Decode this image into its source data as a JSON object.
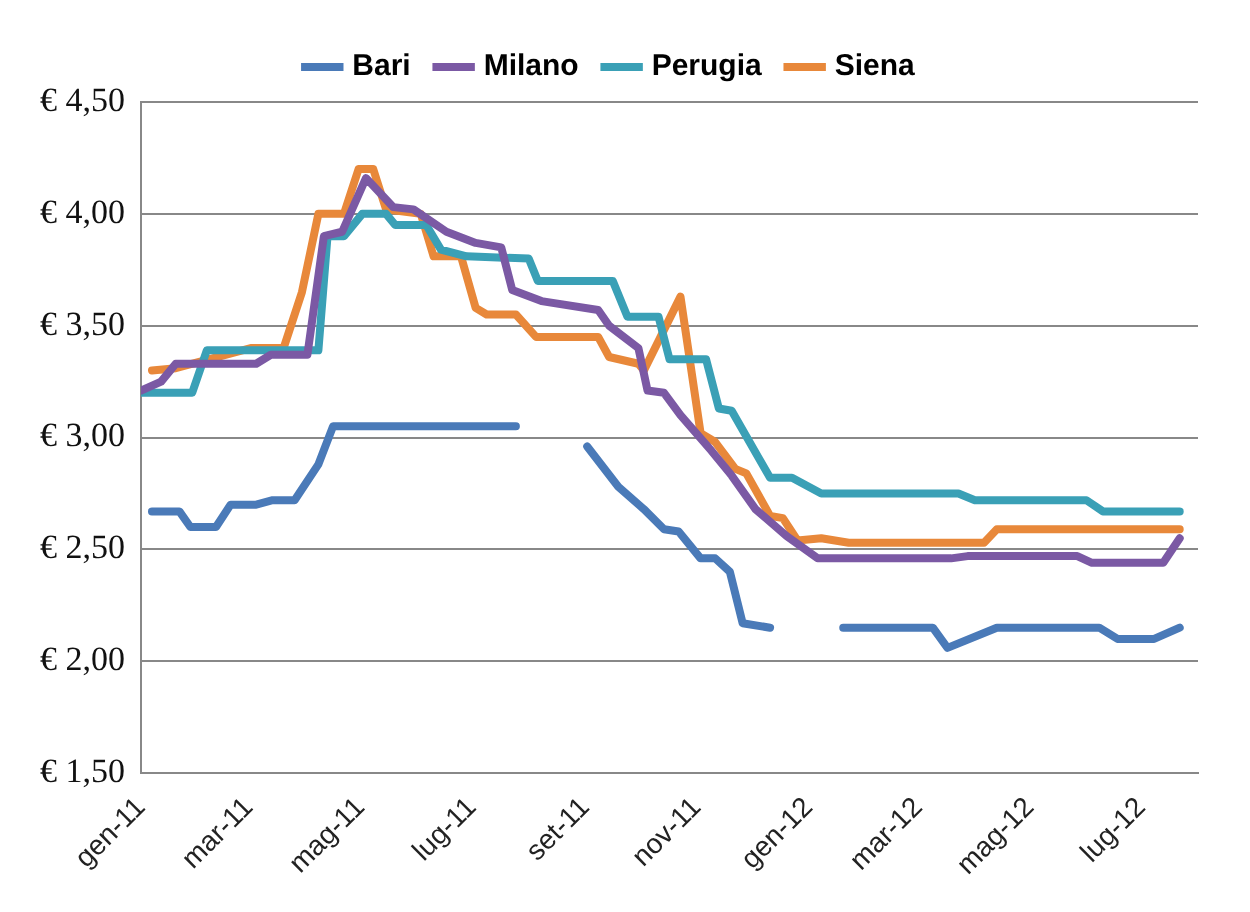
{
  "chart_data": {
    "type": "line",
    "xlim": [
      "2011-01-01",
      "2012-08-01"
    ],
    "xticks": [
      {
        "value": "2011-01-01",
        "label": "gen-11"
      },
      {
        "value": "2011-03-01",
        "label": "mar-11"
      },
      {
        "value": "2011-05-01",
        "label": "mag-11"
      },
      {
        "value": "2011-07-01",
        "label": "lug-11"
      },
      {
        "value": "2011-09-01",
        "label": "set-11"
      },
      {
        "value": "2011-11-01",
        "label": "nov-11"
      },
      {
        "value": "2012-01-01",
        "label": "gen-12"
      },
      {
        "value": "2012-03-01",
        "label": "mar-12"
      },
      {
        "value": "2012-05-01",
        "label": "mag-12"
      },
      {
        "value": "2012-07-01",
        "label": "lug-12"
      }
    ],
    "ylim": [
      1.5,
      4.5
    ],
    "yticks": [
      {
        "value": 1.5,
        "label": "€ 1,50"
      },
      {
        "value": 2,
        "label": "€ 2,00"
      },
      {
        "value": 2.5,
        "label": "€ 2,50"
      },
      {
        "value": 3,
        "label": "€ 3,00"
      },
      {
        "value": 3.5,
        "label": "€ 3,50"
      },
      {
        "value": 4,
        "label": "€ 4,00"
      },
      {
        "value": 4.5,
        "label": "€ 4,50"
      }
    ],
    "grid": "y",
    "legend": "top",
    "marker": "none",
    "line_style": "solid",
    "series": [
      {
        "name": "Bari",
        "color": "#4a7ab8",
        "x": [
          "2011-01-07",
          "2011-01-22",
          "2011-01-28",
          "2011-02-11",
          "2011-02-19",
          "2011-03-05",
          "2011-03-14",
          "2011-03-26",
          "2011-04-08",
          "2011-04-16",
          "2011-07-25",
          "2011-08-15",
          "2011-09-02",
          "2011-09-19",
          "2011-10-03",
          "2011-10-14",
          "2011-10-22",
          "2011-11-03",
          "2011-11-11",
          "2011-11-19",
          "2011-11-26",
          "2011-12-11",
          "2012-01-01",
          "2012-01-20",
          "2012-03-09",
          "2012-03-17",
          "2012-04-13",
          "2012-06-08",
          "2012-06-18",
          "2012-07-08",
          "2012-07-22"
        ],
        "values": [
          2.67,
          2.67,
          2.6,
          2.6,
          2.7,
          2.7,
          2.72,
          2.72,
          2.88,
          3.05,
          3.05,
          null,
          2.96,
          2.78,
          2.68,
          2.59,
          2.58,
          2.46,
          2.46,
          2.4,
          2.17,
          2.15,
          null,
          2.15,
          2.15,
          2.06,
          2.15,
          2.15,
          2.1,
          2.1,
          2.15
        ]
      },
      {
        "name": "Milano",
        "color": "#7b59a4",
        "x": [
          "2011-01-01",
          "2011-01-12",
          "2011-01-20",
          "2011-03-05",
          "2011-03-13",
          "2011-04-02",
          "2011-04-11",
          "2011-04-21",
          "2011-05-04",
          "2011-05-19",
          "2011-05-30",
          "2011-06-17",
          "2011-07-03",
          "2011-07-17",
          "2011-07-23",
          "2011-08-08",
          "2011-09-08",
          "2011-09-14",
          "2011-09-30",
          "2011-10-05",
          "2011-10-14",
          "2011-10-23",
          "2011-11-09",
          "2011-11-20",
          "2011-12-03",
          "2011-12-20",
          "2012-01-06",
          "2012-03-19",
          "2012-03-28",
          "2012-05-27",
          "2012-06-04",
          "2012-07-13",
          "2012-07-22"
        ],
        "values": [
          3.21,
          3.25,
          3.33,
          3.33,
          3.37,
          3.37,
          3.9,
          3.92,
          4.16,
          4.03,
          4.02,
          3.92,
          3.87,
          3.85,
          3.66,
          3.61,
          3.57,
          3.5,
          3.4,
          3.21,
          3.2,
          3.1,
          2.94,
          2.83,
          2.68,
          2.56,
          2.46,
          2.46,
          2.47,
          2.47,
          2.44,
          2.44,
          2.55
        ]
      },
      {
        "name": "Perugia",
        "color": "#3aa0b6",
        "x": [
          "2011-01-01",
          "2011-01-29",
          "2011-02-06",
          "2011-04-08",
          "2011-04-13",
          "2011-04-22",
          "2011-05-02",
          "2011-05-15",
          "2011-05-20",
          "2011-06-06",
          "2011-06-14",
          "2011-06-28",
          "2011-08-01",
          "2011-08-06",
          "2011-09-16",
          "2011-09-24",
          "2011-10-11",
          "2011-10-17",
          "2011-11-06",
          "2011-11-13",
          "2011-11-20",
          "2011-12-11",
          "2011-12-23",
          "2012-01-08",
          "2012-03-23",
          "2012-04-01",
          "2012-06-01",
          "2012-06-10",
          "2012-07-22"
        ],
        "values": [
          3.2,
          3.2,
          3.39,
          3.39,
          3.9,
          3.9,
          4.0,
          4.0,
          3.95,
          3.95,
          3.84,
          3.81,
          3.8,
          3.7,
          3.7,
          3.54,
          3.54,
          3.35,
          3.35,
          3.13,
          3.12,
          2.82,
          2.82,
          2.75,
          2.75,
          2.72,
          2.72,
          2.67,
          2.67
        ]
      },
      {
        "name": "Siena",
        "color": "#e8883a",
        "x": [
          "2011-01-07",
          "2011-01-20",
          "2011-03-02",
          "2011-03-20",
          "2011-03-30",
          "2011-04-08",
          "2011-04-22",
          "2011-04-30",
          "2011-05-08",
          "2011-05-15",
          "2011-06-03",
          "2011-06-10",
          "2011-06-25",
          "2011-07-03",
          "2011-07-09",
          "2011-07-25",
          "2011-08-05",
          "2011-09-08",
          "2011-09-14",
          "2011-09-30",
          "2011-10-03",
          "2011-10-23",
          "2011-11-03",
          "2011-11-11",
          "2011-11-22",
          "2011-11-28",
          "2011-12-11",
          "2011-12-18",
          "2011-12-26",
          "2012-01-08",
          "2012-01-23",
          "2012-04-06",
          "2012-04-13",
          "2012-07-22"
        ],
        "values": [
          3.3,
          3.31,
          3.4,
          3.4,
          3.65,
          4.0,
          4.0,
          4.2,
          4.2,
          4.02,
          4.0,
          3.81,
          3.81,
          3.58,
          3.55,
          3.55,
          3.45,
          3.45,
          3.36,
          3.33,
          3.3,
          3.63,
          3.02,
          2.98,
          2.86,
          2.84,
          2.65,
          2.64,
          2.54,
          2.55,
          2.53,
          2.53,
          2.59,
          2.59
        ]
      }
    ]
  }
}
